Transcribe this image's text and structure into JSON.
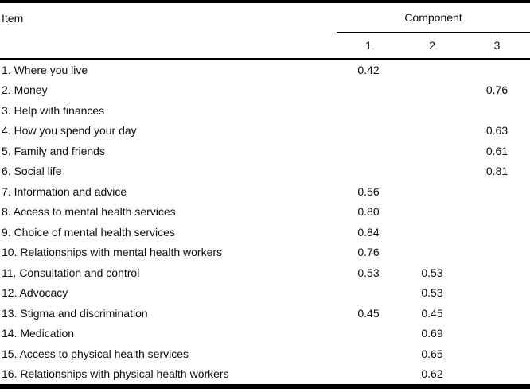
{
  "table": {
    "item_header": "Item",
    "component_header": "Component",
    "component_columns": [
      "1",
      "2",
      "3"
    ],
    "rows": [
      {
        "item": "1. Where you live",
        "c1": "0.42",
        "c2": "",
        "c3": ""
      },
      {
        "item": "2. Money",
        "c1": "",
        "c2": "",
        "c3": "0.76"
      },
      {
        "item": "3. Help with finances",
        "c1": "",
        "c2": "",
        "c3": ""
      },
      {
        "item": "4. How you spend your day",
        "c1": "",
        "c2": "",
        "c3": "0.63"
      },
      {
        "item": "5. Family and friends",
        "c1": "",
        "c2": "",
        "c3": "0.61"
      },
      {
        "item": "6. Social life",
        "c1": "",
        "c2": "",
        "c3": "0.81"
      },
      {
        "item": "7. Information and advice",
        "c1": "0.56",
        "c2": "",
        "c3": ""
      },
      {
        "item": "8. Access to mental health services",
        "c1": "0.80",
        "c2": "",
        "c3": ""
      },
      {
        "item": "9. Choice of mental health services",
        "c1": "0.84",
        "c2": "",
        "c3": ""
      },
      {
        "item": "10. Relationships with mental health workers",
        "c1": "0.76",
        "c2": "",
        "c3": ""
      },
      {
        "item": "11. Consultation and control",
        "c1": "0.53",
        "c2": "0.53",
        "c3": ""
      },
      {
        "item": "12. Advocacy",
        "c1": "",
        "c2": "0.53",
        "c3": ""
      },
      {
        "item": "13. Stigma and discrimination",
        "c1": "0.45",
        "c2": "0.45",
        "c3": ""
      },
      {
        "item": "14. Medication",
        "c1": "",
        "c2": "0.69",
        "c3": ""
      },
      {
        "item": "15. Access to physical health services",
        "c1": "",
        "c2": "0.65",
        "c3": ""
      },
      {
        "item": "16. Relationships with physical health workers",
        "c1": "",
        "c2": "0.62",
        "c3": ""
      }
    ]
  }
}
